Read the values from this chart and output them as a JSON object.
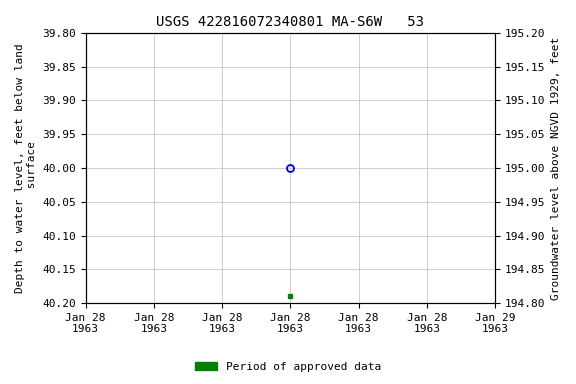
{
  "title": "USGS 422816072340801 MA-S6W   53",
  "ylabel_left": "Depth to water level, feet below land\n surface",
  "ylabel_right": "Groundwater level above NGVD 1929, feet",
  "ylim_left": [
    40.2,
    39.8
  ],
  "ylim_right": [
    194.8,
    195.2
  ],
  "yticks_left": [
    39.8,
    39.85,
    39.9,
    39.95,
    40.0,
    40.05,
    40.1,
    40.15,
    40.2
  ],
  "yticks_right": [
    195.2,
    195.15,
    195.1,
    195.05,
    195.0,
    194.95,
    194.9,
    194.85,
    194.8
  ],
  "data_point_open_x_hours": 72,
  "data_point_open_value": 40.0,
  "data_point_filled_x_hours": 72,
  "data_point_filled_value": 40.19,
  "open_marker_color": "#0000cc",
  "filled_marker_color": "#008000",
  "legend_label": "Period of approved data",
  "legend_color": "#008000",
  "background_color": "white",
  "grid_color": "#c8c8c8",
  "title_fontsize": 10,
  "axis_label_fontsize": 8,
  "tick_fontsize": 8,
  "xlim_hours": [
    0,
    144
  ],
  "xtick_hours": [
    0,
    24,
    48,
    72,
    96,
    120,
    144
  ],
  "xtick_labels": [
    "Jan 28\n1963",
    "Jan 28\n1963",
    "Jan 28\n1963",
    "Jan 28\n1963",
    "Jan 28\n1963",
    "Jan 28\n1963",
    "Jan 29\n1963"
  ]
}
